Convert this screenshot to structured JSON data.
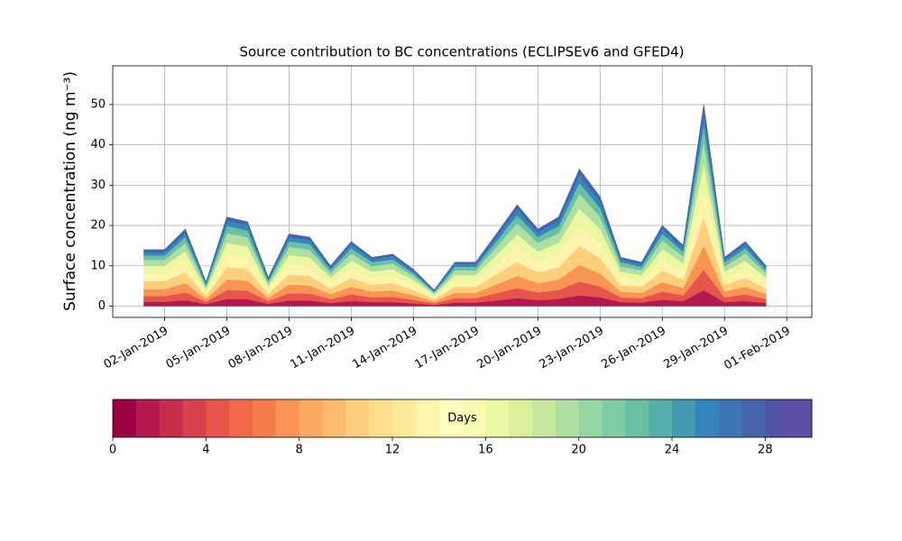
{
  "chart_data": {
    "type": "stacked_area",
    "title": "Source contribution to BC concentrations (ECLIPSEv6 and GFED4)",
    "ylabel": "Surface concentration (ng m⁻³)",
    "x": [
      "2019-01-01",
      "2019-01-02",
      "2019-01-03",
      "2019-01-04",
      "2019-01-05",
      "2019-01-06",
      "2019-01-07",
      "2019-01-08",
      "2019-01-09",
      "2019-01-10",
      "2019-01-11",
      "2019-01-12",
      "2019-01-13",
      "2019-01-14",
      "2019-01-15",
      "2019-01-16",
      "2019-01-17",
      "2019-01-18",
      "2019-01-19",
      "2019-01-20",
      "2019-01-21",
      "2019-01-22",
      "2019-01-23",
      "2019-01-24",
      "2019-01-25",
      "2019-01-26",
      "2019-01-27",
      "2019-01-28",
      "2019-01-29",
      "2019-01-30",
      "2019-01-31"
    ],
    "xlim": [
      "2018-12-30T12:00Z",
      "2019-02-02T05:00Z"
    ],
    "xticks": [
      {
        "value": "2019-01-02",
        "label": "02-Jan-2019"
      },
      {
        "value": "2019-01-05",
        "label": "05-Jan-2019"
      },
      {
        "value": "2019-01-08",
        "label": "08-Jan-2019"
      },
      {
        "value": "2019-01-11",
        "label": "11-Jan-2019"
      },
      {
        "value": "2019-01-14",
        "label": "14-Jan-2019"
      },
      {
        "value": "2019-01-17",
        "label": "17-Jan-2019"
      },
      {
        "value": "2019-01-20",
        "label": "20-Jan-2019"
      },
      {
        "value": "2019-01-23",
        "label": "23-Jan-2019"
      },
      {
        "value": "2019-01-26",
        "label": "26-Jan-2019"
      },
      {
        "value": "2019-01-29",
        "label": "29-Jan-2019"
      },
      {
        "value": "2019-02-01",
        "label": "01-Feb-2019"
      }
    ],
    "ylim": [
      -2.8,
      59.6
    ],
    "yticks": [
      0,
      10,
      20,
      30,
      40,
      50
    ],
    "grid": true,
    "series": [
      {
        "color": "#b31a4b",
        "values": [
          1.1,
          1.1,
          1.5,
          0.5,
          1.8,
          1.7,
          0.6,
          1.4,
          1.4,
          0.8,
          1.3,
          1.0,
          1.0,
          0.7,
          0.3,
          0.9,
          0.9,
          1.4,
          2.0,
          1.5,
          1.8,
          2.7,
          2.2,
          1.0,
          0.9,
          1.6,
          1.2,
          4.0,
          1.0,
          1.3,
          0.8
        ]
      },
      {
        "color": "#e4564b",
        "values": [
          1.4,
          1.4,
          1.9,
          0.6,
          2.2,
          2.1,
          0.7,
          1.8,
          1.7,
          1.0,
          1.6,
          1.2,
          1.3,
          0.9,
          0.4,
          1.1,
          1.1,
          1.8,
          2.5,
          1.9,
          2.2,
          3.4,
          2.7,
          1.2,
          1.1,
          2.0,
          1.5,
          5.0,
          1.2,
          1.6,
          1.0
        ]
      },
      {
        "color": "#f99455",
        "values": [
          1.7,
          1.7,
          2.3,
          0.7,
          2.6,
          2.5,
          0.8,
          2.2,
          2.0,
          1.2,
          1.9,
          1.4,
          1.6,
          1.1,
          0.5,
          1.3,
          1.3,
          2.2,
          3.0,
          2.3,
          2.6,
          4.1,
          3.2,
          1.4,
          1.3,
          2.4,
          1.8,
          6.0,
          1.4,
          1.9,
          1.2
        ]
      },
      {
        "color": "#fecf7d",
        "values": [
          2.0,
          2.0,
          2.7,
          0.8,
          3.1,
          2.9,
          1.0,
          2.5,
          2.4,
          1.4,
          2.2,
          1.7,
          1.8,
          1.3,
          0.6,
          1.5,
          1.5,
          2.5,
          3.5,
          2.7,
          3.1,
          4.8,
          3.8,
          1.7,
          1.5,
          2.8,
          2.1,
          7.0,
          1.7,
          2.2,
          1.4
        ]
      },
      {
        "color": "#fff4ac",
        "values": [
          2.0,
          2.0,
          2.7,
          0.8,
          3.1,
          2.9,
          1.0,
          2.5,
          2.4,
          1.4,
          2.2,
          1.7,
          1.8,
          1.3,
          0.6,
          1.5,
          1.5,
          2.5,
          3.5,
          2.7,
          3.1,
          4.8,
          3.8,
          1.7,
          1.5,
          2.8,
          2.1,
          7.0,
          1.7,
          2.2,
          1.4
        ]
      },
      {
        "color": "#ecf7a2",
        "values": [
          1.8,
          1.8,
          2.5,
          0.8,
          2.9,
          2.7,
          0.9,
          2.3,
          2.2,
          1.3,
          2.1,
          1.6,
          1.7,
          1.2,
          0.5,
          1.4,
          1.4,
          2.3,
          3.3,
          2.5,
          2.9,
          4.4,
          3.5,
          1.6,
          1.4,
          2.6,
          2.0,
          6.5,
          1.6,
          2.1,
          1.3
        ]
      },
      {
        "color": "#b0dfa3",
        "values": [
          1.5,
          1.5,
          2.1,
          0.7,
          2.4,
          2.3,
          0.8,
          2.0,
          1.9,
          1.1,
          1.8,
          1.3,
          1.4,
          1.0,
          0.4,
          1.2,
          1.2,
          2.0,
          2.8,
          2.1,
          2.4,
          3.7,
          3.0,
          1.3,
          1.2,
          2.2,
          1.7,
          5.5,
          1.3,
          1.8,
          1.1
        ]
      },
      {
        "color": "#69c0a4",
        "values": [
          1.1,
          1.1,
          1.5,
          0.5,
          1.8,
          1.7,
          0.6,
          1.4,
          1.4,
          0.8,
          1.3,
          1.0,
          1.0,
          0.7,
          0.3,
          0.9,
          0.9,
          1.4,
          2.0,
          1.5,
          1.8,
          2.7,
          2.2,
          1.0,
          0.9,
          1.6,
          1.2,
          4.0,
          1.0,
          1.3,
          0.8
        ]
      },
      {
        "color": "#3486bc",
        "values": [
          0.8,
          0.8,
          1.1,
          0.4,
          1.3,
          1.3,
          0.4,
          1.1,
          1.0,
          0.6,
          1.0,
          0.7,
          0.8,
          0.5,
          0.2,
          0.7,
          0.7,
          1.1,
          1.5,
          1.1,
          1.3,
          2.0,
          1.6,
          0.7,
          0.7,
          1.2,
          0.9,
          3.0,
          0.7,
          1.0,
          0.6
        ]
      },
      {
        "color": "#4763ab",
        "values": [
          0.6,
          0.6,
          0.8,
          0.2,
          0.9,
          0.8,
          0.3,
          0.7,
          0.7,
          0.4,
          0.6,
          0.5,
          0.5,
          0.4,
          0.2,
          0.4,
          0.4,
          0.7,
          1.0,
          0.8,
          0.9,
          1.4,
          1.1,
          0.5,
          0.4,
          0.8,
          0.6,
          2.0,
          0.5,
          0.6,
          0.4
        ]
      }
    ],
    "colorbar": {
      "label": "Days",
      "lim": [
        0,
        30
      ],
      "ticks": [
        0,
        4,
        8,
        12,
        16,
        20,
        24,
        28
      ],
      "colors": [
        "#9e0142",
        "#b31a4b",
        "#c72e4c",
        "#d8424d",
        "#e4564b",
        "#ef6a45",
        "#f67d4a",
        "#f99455",
        "#fcaa60",
        "#fdbd6e",
        "#fecf7d",
        "#fede8a",
        "#feea9b",
        "#fff4ac",
        "#fffebe",
        "#f7fcb3",
        "#ecf7a2",
        "#dcf09b",
        "#c6e89e",
        "#b0dfa3",
        "#98d5a4",
        "#7fcba4",
        "#69c0a4",
        "#56afab",
        "#439bb3",
        "#3486bc",
        "#3d74b3",
        "#4763ab",
        "#5453a4",
        "#5e4fa2"
      ]
    }
  }
}
